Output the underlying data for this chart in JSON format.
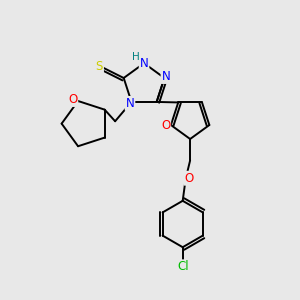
{
  "background_color": "#e8e8e8",
  "atoms": {
    "S": {
      "color": "#cccc00"
    },
    "N": {
      "color": "#0000ff"
    },
    "O": {
      "color": "#ff0000"
    },
    "Cl": {
      "color": "#00bb00"
    },
    "H": {
      "color": "#008080"
    }
  },
  "bond_color": "#000000",
  "font_size": 8.5,
  "figsize": [
    3.0,
    3.0
  ],
  "dpi": 100
}
